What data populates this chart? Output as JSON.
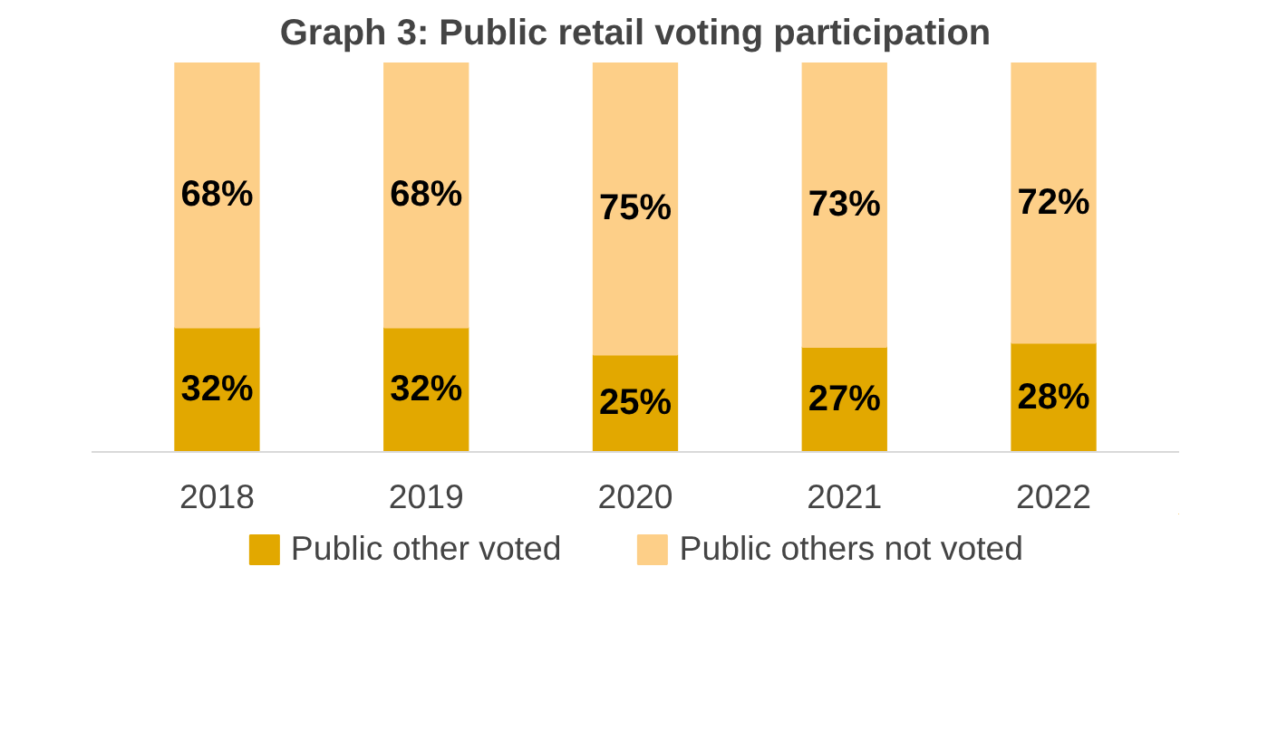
{
  "chart_data": {
    "type": "bar",
    "stacked": true,
    "title": "Graph 3: Public retail voting participation",
    "categories": [
      "2018",
      "2019",
      "2020",
      "2021",
      "2022"
    ],
    "series": [
      {
        "name": "Public other voted",
        "color": "#e2a800",
        "values": [
          32,
          32,
          25,
          27,
          28
        ],
        "value_labels": [
          "32%",
          "32%",
          "25%",
          "27%",
          "28%"
        ]
      },
      {
        "name": "Public others not voted",
        "color": "#fdcf88",
        "values": [
          68,
          68,
          75,
          73,
          72
        ],
        "value_labels": [
          "68%",
          "68%",
          "75%",
          "73%",
          "72%"
        ]
      }
    ],
    "ylim": [
      0,
      100
    ],
    "tick_labels": "x",
    "legend": "bottom"
  }
}
